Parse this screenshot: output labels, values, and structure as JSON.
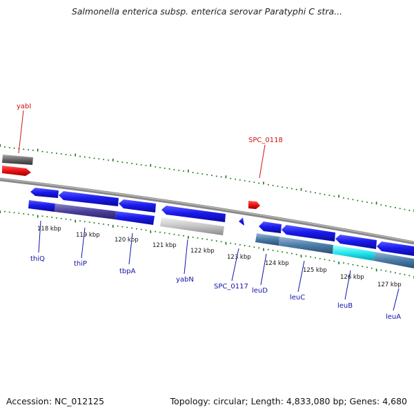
{
  "header": {
    "title": "Salmonella enterica subsp. enterica serovar Paratyphi C stra..."
  },
  "footer": {
    "accession": "Accession: NC_012125",
    "topology": "Topology: circular; Length: 4,833,080 bp; Genes: 4,680"
  },
  "colors": {
    "forward_gene": "#1a1aee",
    "highlight_gene": "#ee1111",
    "pseudo_gene": "#666666",
    "backbone": "#777777",
    "ticks": "#117711",
    "gene_label": "#1111aa",
    "highlight_label": "#cc1111"
  },
  "scale_labels": [
    "118 kbp",
    "119 kbp",
    "120 kbp",
    "121 kbp",
    "122 kbp",
    "123 kbp",
    "124 kbp",
    "125 kbp",
    "126 kbp",
    "127 kbp"
  ],
  "gene_labels": [
    {
      "name": "thiQ",
      "color": "blue"
    },
    {
      "name": "thiP",
      "color": "blue"
    },
    {
      "name": "tbpA",
      "color": "blue"
    },
    {
      "name": "yabN",
      "color": "blue"
    },
    {
      "name": "SPC_0117",
      "color": "blue"
    },
    {
      "name": "leuD",
      "color": "blue"
    },
    {
      "name": "leuC",
      "color": "blue"
    },
    {
      "name": "leuB",
      "color": "blue"
    },
    {
      "name": "leuA",
      "color": "blue"
    }
  ],
  "highlight_labels": [
    {
      "name": "yabI"
    },
    {
      "name": "SPC_0118"
    }
  ]
}
